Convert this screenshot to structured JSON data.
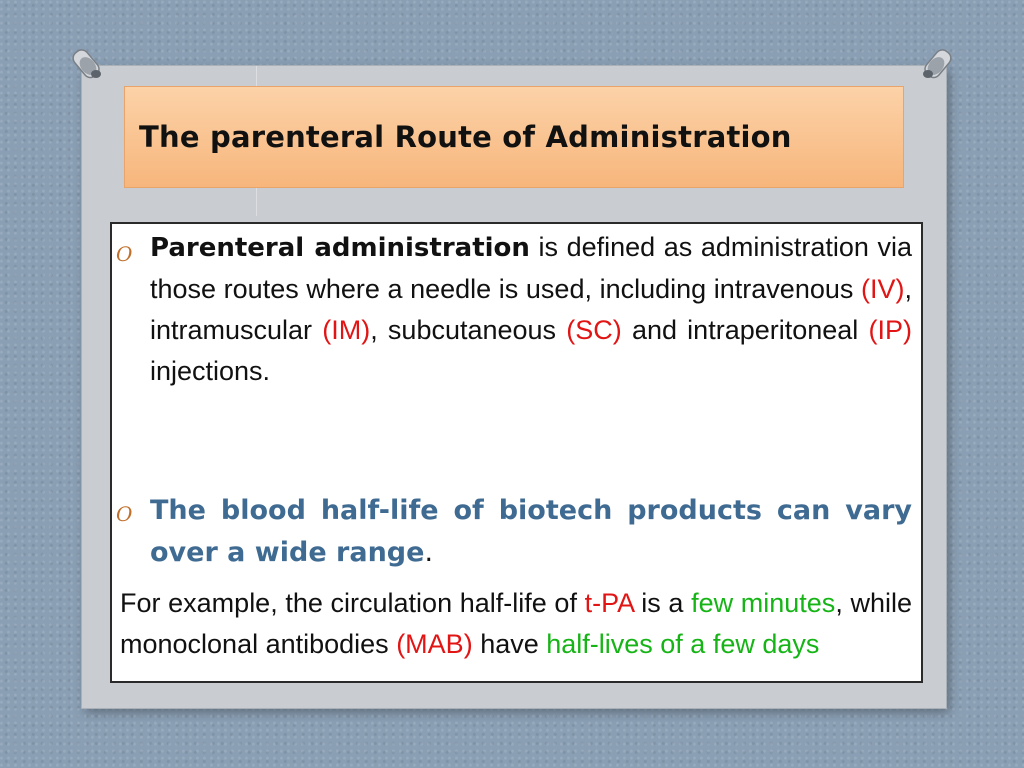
{
  "slide": {
    "title": "The parenteral Route of Administration",
    "bullet_symbol": "O",
    "colors": {
      "title_bg": "#f8c08c",
      "bullet": "#c0702c",
      "highlight_blue": "#3f6b92",
      "abbrev_red": "#e21515",
      "emphasis_green": "#17b417"
    },
    "p1": {
      "term": "Parenteral administration",
      "t1": " is defined as administration via those routes where a needle is used, including intravenous ",
      "iv": "(IV)",
      "t2": ", intramuscular ",
      "im": "(IM)",
      "t3": ", subcutaneous ",
      "sc": "(SC)",
      "t4": " and intraperitoneal ",
      "ip": "(IP)",
      "t5": " injections."
    },
    "p2": {
      "text": "The blood half-life of biotech products can vary over a wide range",
      "end": "."
    },
    "p3": {
      "t1": "For example, the circulation half-life of ",
      "tpa": "t-PA",
      "t2": " is a ",
      "few_minutes": "few minutes",
      "t3": ", while monoclonal antibodies ",
      "mab": "(MAB)",
      "t4": " have ",
      "half_lives": "half-lives of a few days"
    }
  }
}
